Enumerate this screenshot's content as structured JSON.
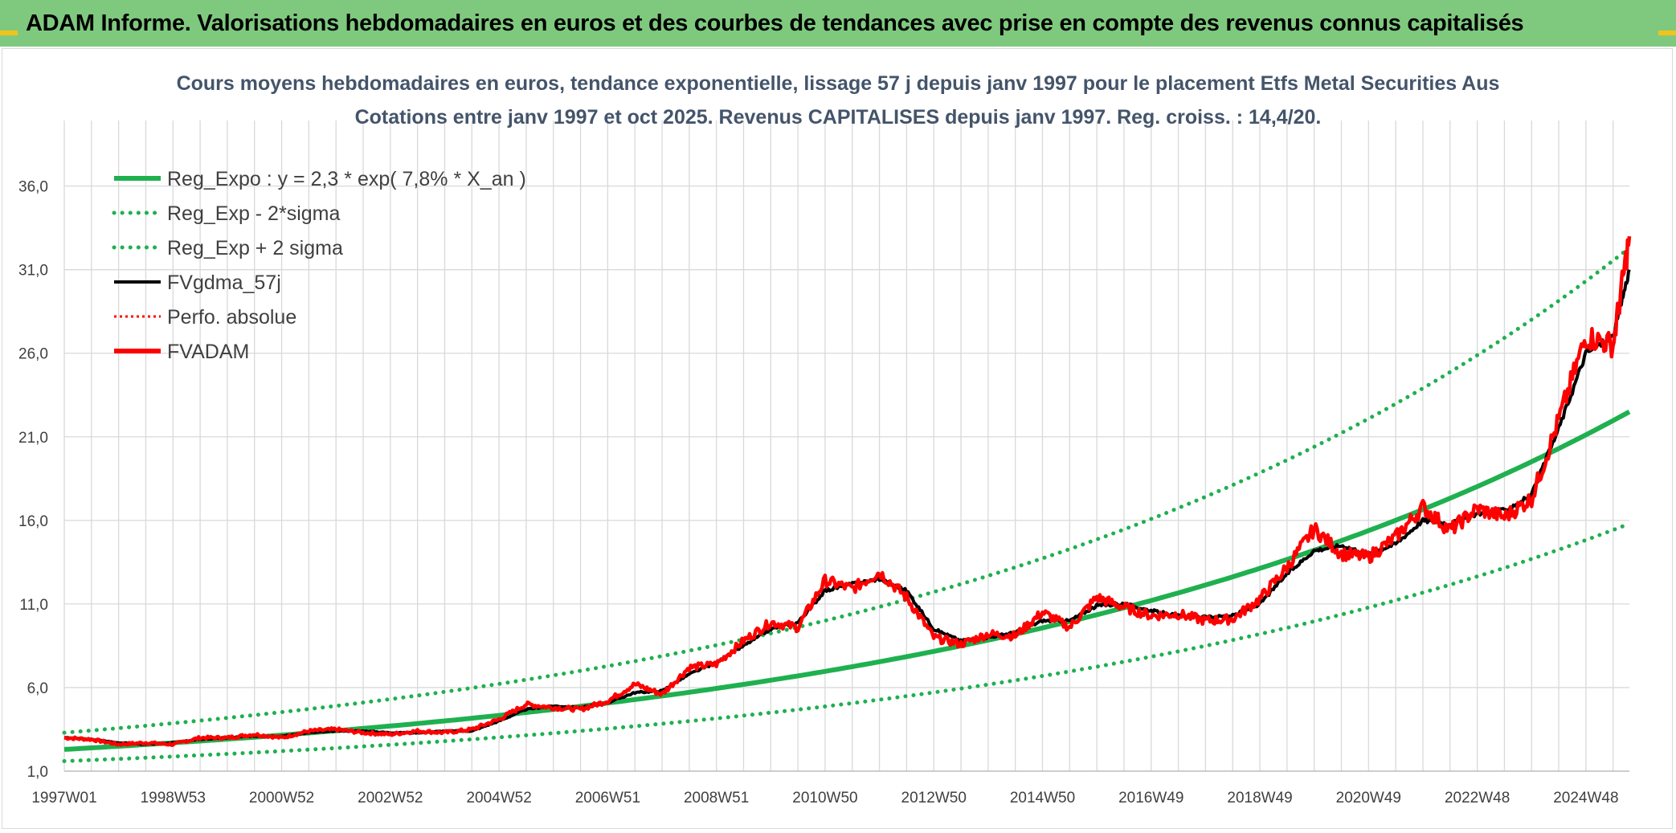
{
  "header": {
    "banner_title": "ADAM Informe. Valorisations hebdomadaires en euros et des courbes de tendances avec prise en compte des revenus connus capitalisés"
  },
  "colors": {
    "banner_bg": "#7fc97f",
    "reg_expo": "#1fb04f",
    "fvgdma": "#000000",
    "fvadam": "#ff0000",
    "perfo": "#ff0000",
    "grid": "#d9d9d9"
  },
  "chart_data": {
    "type": "line",
    "title": "Cours moyens hebdomadaires en euros, tendance exponentielle, lissage 57 j depuis janv 1997 pour le placement Etfs Metal Securities Aus",
    "subtitle": "Cotations entre janv 1997 et oct 2025. Revenus CAPITALISES depuis janv 1997. Reg. croiss. : 14,4/20.",
    "xlabel": "",
    "ylabel": "",
    "ylim": [
      1,
      38
    ],
    "yticks": [
      "1,0",
      "6,0",
      "11,0",
      "16,0",
      "21,0",
      "26,0",
      "31,0",
      "36,0"
    ],
    "yticks_values": [
      1,
      6,
      11,
      16,
      21,
      26,
      31,
      36
    ],
    "x_range_years": [
      1997.0,
      2025.8
    ],
    "xticks": [
      "1997W01",
      "1998W53",
      "2000W52",
      "2002W52",
      "2004W52",
      "2006W51",
      "2008W51",
      "2010W50",
      "2012W50",
      "2014W50",
      "2016W49",
      "2018W49",
      "2020W49",
      "2022W48",
      "2024W48"
    ],
    "xticks_years": [
      1997.0,
      1999.0,
      2001.0,
      2003.0,
      2005.0,
      2007.0,
      2009.0,
      2011.0,
      2013.0,
      2015.0,
      2017.0,
      2019.0,
      2021.0,
      2023.0,
      2025.0
    ],
    "grid": true,
    "legend_position": "top-left",
    "legend": [
      {
        "label": "Reg_Expo : y = 2,3 * exp( 7,8% *  X_an )",
        "style": "solid-thick",
        "color": "#1fb04f"
      },
      {
        "label": "Reg_Exp - 2*sigma",
        "style": "dotted",
        "color": "#1fb04f"
      },
      {
        "label": "Reg_Exp + 2 sigma",
        "style": "dotted",
        "color": "#1fb04f"
      },
      {
        "label": "FVgdma_57j",
        "style": "solid",
        "color": "#000000"
      },
      {
        "label": "Perfo. absolue",
        "style": "dotted-thin",
        "color": "#ff0000"
      },
      {
        "label": "FVADAM",
        "style": "solid-thick",
        "color": "#ff0000"
      }
    ],
    "series": [
      {
        "name": "Reg_Expo : y = 2,3 * exp( 7,8% *  X_an )",
        "x": [
          1997.0,
          2000.0,
          2003.0,
          2006.0,
          2009.0,
          2012.0,
          2015.0,
          2018.0,
          2021.0,
          2024.0,
          2025.8
        ],
        "values": [
          2.3,
          2.9,
          3.6,
          4.5,
          5.8,
          7.2,
          9.1,
          11.5,
          14.5,
          18.3,
          22.5
        ]
      },
      {
        "name": "Reg_Exp - 2*sigma",
        "x": [
          1997.0,
          2000.0,
          2003.0,
          2006.0,
          2009.0,
          2012.0,
          2015.0,
          2018.0,
          2021.0,
          2024.0,
          2025.8
        ],
        "values": [
          1.6,
          2.0,
          2.5,
          3.2,
          4.1,
          5.1,
          6.4,
          8.1,
          10.2,
          12.8,
          15.8
        ]
      },
      {
        "name": "Reg_Exp + 2 sigma",
        "x": [
          1997.0,
          2000.0,
          2003.0,
          2006.0,
          2009.0,
          2012.0,
          2015.0,
          2018.0,
          2021.0,
          2024.0,
          2025.8
        ],
        "values": [
          3.3,
          4.1,
          5.1,
          6.5,
          8.2,
          10.2,
          13.0,
          16.4,
          20.6,
          26.0,
          32.3
        ]
      },
      {
        "name": "FVgdma_57j",
        "x": [
          1997.0,
          1997.5,
          1998.0,
          1998.5,
          1999.0,
          1999.5,
          2000.0,
          2000.5,
          2001.0,
          2001.5,
          2002.0,
          2002.5,
          2003.0,
          2003.5,
          2004.0,
          2004.5,
          2005.0,
          2005.5,
          2006.0,
          2006.5,
          2007.0,
          2007.5,
          2008.0,
          2008.5,
          2009.0,
          2009.5,
          2010.0,
          2010.5,
          2011.0,
          2011.5,
          2012.0,
          2012.5,
          2013.0,
          2013.5,
          2014.0,
          2014.5,
          2015.0,
          2015.5,
          2016.0,
          2016.5,
          2017.0,
          2017.5,
          2018.0,
          2018.5,
          2019.0,
          2019.5,
          2020.0,
          2020.5,
          2021.0,
          2021.5,
          2022.0,
          2022.5,
          2023.0,
          2023.5,
          2024.0,
          2024.5,
          2025.0,
          2025.5,
          2025.8
        ],
        "values": [
          3.0,
          2.9,
          2.7,
          2.6,
          2.7,
          2.9,
          3.0,
          3.1,
          3.1,
          3.3,
          3.4,
          3.4,
          3.3,
          3.3,
          3.4,
          3.4,
          4.0,
          4.7,
          4.9,
          4.8,
          5.1,
          5.7,
          5.8,
          6.8,
          7.5,
          8.5,
          9.5,
          9.9,
          11.8,
          12.2,
          12.5,
          11.8,
          9.5,
          8.8,
          9.0,
          9.3,
          10.0,
          10.0,
          10.9,
          11.0,
          10.6,
          10.3,
          10.2,
          10.3,
          11.0,
          12.8,
          14.2,
          14.5,
          14.0,
          14.6,
          16.0,
          15.8,
          16.4,
          16.6,
          17.5,
          21.5,
          26.0,
          27.0,
          31.0
        ]
      },
      {
        "name": "FVADAM",
        "x": [
          1997.0,
          1997.5,
          1998.0,
          1998.5,
          1999.0,
          1999.5,
          2000.0,
          2000.5,
          2001.0,
          2001.5,
          2002.0,
          2002.5,
          2003.0,
          2003.5,
          2004.0,
          2004.5,
          2005.0,
          2005.5,
          2006.0,
          2006.5,
          2007.0,
          2007.5,
          2008.0,
          2008.5,
          2009.0,
          2009.5,
          2010.0,
          2010.5,
          2011.0,
          2011.5,
          2012.0,
          2012.5,
          2013.0,
          2013.5,
          2014.0,
          2014.5,
          2015.0,
          2015.5,
          2016.0,
          2016.5,
          2017.0,
          2017.5,
          2018.0,
          2018.5,
          2019.0,
          2019.5,
          2020.0,
          2020.5,
          2021.0,
          2021.5,
          2022.0,
          2022.5,
          2023.0,
          2023.5,
          2024.0,
          2024.5,
          2025.0,
          2025.5,
          2025.8
        ],
        "values": [
          3.0,
          2.9,
          2.6,
          2.7,
          2.6,
          3.0,
          3.0,
          3.2,
          3.0,
          3.4,
          3.5,
          3.3,
          3.2,
          3.4,
          3.3,
          3.5,
          4.1,
          5.0,
          4.8,
          4.7,
          5.2,
          6.2,
          5.6,
          7.2,
          7.4,
          8.8,
          9.9,
          9.6,
          12.4,
          11.9,
          12.9,
          11.4,
          9.0,
          8.6,
          9.2,
          9.1,
          10.5,
          9.6,
          11.4,
          10.8,
          10.3,
          10.4,
          10.0,
          10.1,
          11.3,
          13.2,
          15.5,
          14.0,
          13.8,
          15.0,
          16.8,
          15.4,
          16.7,
          16.2,
          17.3,
          22.0,
          27.0,
          26.5,
          33.0
        ]
      }
    ]
  }
}
